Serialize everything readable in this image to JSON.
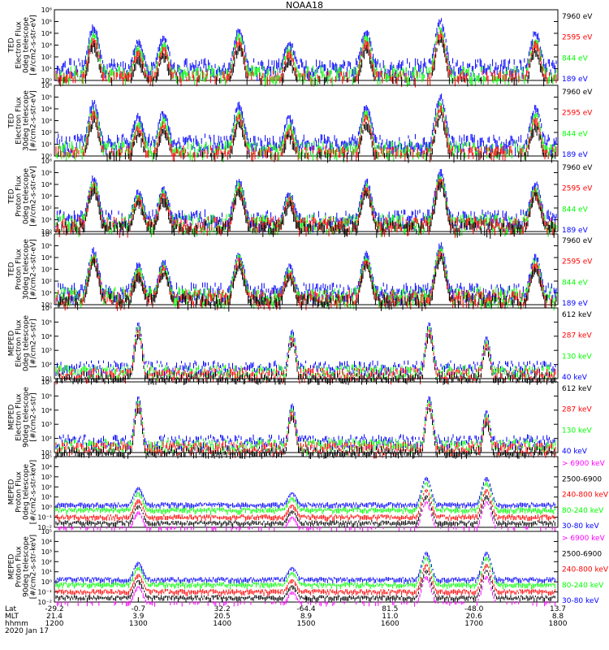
{
  "title": "NOAA18",
  "colors": {
    "blue": "#0000ff",
    "red": "#ff0000",
    "green": "#00ff00",
    "black": "#000000",
    "magenta": "#ff00ff"
  },
  "panels": [
    {
      "ylabel": [
        "TED",
        "Electron Flux",
        "0deg telescope",
        "[#/cm2-s-str-eV]"
      ],
      "ticks": [
        "10⁰",
        "10¹",
        "10²",
        "10³",
        "10⁴",
        "10⁵",
        "10⁶"
      ],
      "log_min": 0,
      "log_max": 6,
      "legend": [
        {
          "text": "7960 eV",
          "color": "black"
        },
        {
          "text": "2595 eV",
          "color": "red"
        },
        {
          "text": "844 eV",
          "color": "green"
        },
        {
          "text": "189 eV",
          "color": "blue"
        }
      ]
    },
    {
      "ylabel": [
        "TED",
        "Electron Flux",
        "30deg telescope",
        "[#/cm2-s-str-eV]"
      ],
      "ticks": [
        "10⁰",
        "10¹",
        "10²",
        "10³",
        "10⁴",
        "10⁵",
        "10⁶"
      ],
      "log_min": 0,
      "log_max": 6,
      "legend": [
        {
          "text": "7960 eV",
          "color": "black"
        },
        {
          "text": "2595 eV",
          "color": "red"
        },
        {
          "text": "844 eV",
          "color": "green"
        },
        {
          "text": "189 eV",
          "color": "blue"
        }
      ]
    },
    {
      "ylabel": [
        "TED",
        "Proton Flux",
        "0deg telescope",
        "[#/cm2-s-str-eV]"
      ],
      "ticks": [
        "10⁰",
        "10¹",
        "10²",
        "10³",
        "10⁴",
        "10⁵",
        "10⁶"
      ],
      "log_min": 0,
      "log_max": 6,
      "legend": [
        {
          "text": "7960 eV",
          "color": "black"
        },
        {
          "text": "2595 eV",
          "color": "red"
        },
        {
          "text": "844 eV",
          "color": "green"
        },
        {
          "text": "189 eV",
          "color": "blue"
        }
      ]
    },
    {
      "ylabel": [
        "TED",
        "Proton Flux",
        "30deg telescope",
        "[#/cm2-s-str-eV]"
      ],
      "ticks": [
        "10⁰",
        "10¹",
        "10²",
        "10³",
        "10⁴",
        "10⁵",
        "10⁶"
      ],
      "log_min": 0,
      "log_max": 6,
      "legend": [
        {
          "text": "7960 eV",
          "color": "black"
        },
        {
          "text": "2595 eV",
          "color": "red"
        },
        {
          "text": "844 eV",
          "color": "green"
        },
        {
          "text": "189 eV",
          "color": "blue"
        }
      ]
    },
    {
      "ylabel": [
        "MEPED",
        "Electron Flux",
        "0deg telescope",
        "[#/cm2-s-str]"
      ],
      "ticks": [
        "10¹",
        "10²",
        "10³",
        "10⁴",
        "10⁵",
        "10⁶"
      ],
      "log_min": 1,
      "log_max": 6,
      "legend": [
        {
          "text": "612 keV",
          "color": "black"
        },
        {
          "text": "287 keV",
          "color": "red"
        },
        {
          "text": "130 keV",
          "color": "green"
        },
        {
          "text": "40 keV",
          "color": "blue"
        }
      ]
    },
    {
      "ylabel": [
        "MEPED",
        "Electron Flux",
        "90deg telescope",
        "[#/cm2-s-str]"
      ],
      "ticks": [
        "10¹",
        "10²",
        "10³",
        "10⁴",
        "10⁵",
        "10⁶"
      ],
      "log_min": 1,
      "log_max": 6,
      "legend": [
        {
          "text": "612 keV",
          "color": "black"
        },
        {
          "text": "287 keV",
          "color": "red"
        },
        {
          "text": "130 keV",
          "color": "green"
        },
        {
          "text": "40 keV",
          "color": "blue"
        }
      ]
    },
    {
      "ylabel": [
        "MEPED",
        "Proton Flux",
        "0deg telescope",
        "[#/cm2-s-str-keV]"
      ],
      "ticks": [
        "10⁻²",
        "10⁻¹",
        "10⁰",
        "10¹",
        "10²",
        "10³",
        "10⁴",
        "10⁵"
      ],
      "log_min": -2,
      "log_max": 5,
      "legend": [
        {
          "text": "> 6900 keV",
          "color": "magenta"
        },
        {
          "text": "2500-6900",
          "color": "black"
        },
        {
          "text": "240-800 keV",
          "color": "red"
        },
        {
          "text": "80-240 keV",
          "color": "green"
        },
        {
          "text": "30-80 keV",
          "color": "blue"
        }
      ]
    },
    {
      "ylabel": [
        "MEPED",
        "Proton Flux",
        "90deg telescope",
        "[#/cm2-s-str-keV]"
      ],
      "ticks": [
        "10⁻²",
        "10⁻¹",
        "10⁰",
        "10¹",
        "10²",
        "10³",
        "10⁴",
        "10⁵"
      ],
      "log_min": -2,
      "log_max": 5,
      "legend": [
        {
          "text": "> 6900 keV",
          "color": "magenta"
        },
        {
          "text": "2500-6900",
          "color": "black"
        },
        {
          "text": "240-800 keV",
          "color": "red"
        },
        {
          "text": "80-240 keV",
          "color": "green"
        },
        {
          "text": "30-80 keV",
          "color": "blue"
        }
      ]
    }
  ],
  "x_axis": {
    "row_labels": [
      "Lat",
      "MLT",
      "hhmm"
    ],
    "date": "2020 Jan 17",
    "columns": [
      {
        "lat": "-29.2",
        "mlt": "21.4",
        "hhmm": "1200"
      },
      {
        "lat": "-0.7",
        "mlt": "3.9",
        "hhmm": "1300"
      },
      {
        "lat": "32.2",
        "mlt": "20.5",
        "hhmm": "1400"
      },
      {
        "lat": "-64.4",
        "mlt": "8.9",
        "hhmm": "1500"
      },
      {
        "lat": "81.5",
        "mlt": "11.0",
        "hhmm": "1600"
      },
      {
        "lat": "-48.0",
        "mlt": "20.6",
        "hhmm": "1700"
      },
      {
        "lat": "13.7",
        "mlt": "8.8",
        "hhmm": "1800"
      }
    ]
  },
  "chart_data": {
    "type": "line",
    "title": "NOAA18",
    "x": [
      "1200",
      "1300",
      "1400",
      "1500",
      "1600",
      "1700",
      "1800"
    ],
    "xlim": [
      "1200",
      "1800"
    ],
    "y_scale": "log",
    "grid": false,
    "legend_placement": "right",
    "profiles": {
      "ted_electron": [
        {
          "t": "1228",
          "base": 1.0,
          "peak": 4.5
        },
        {
          "t": "1300",
          "base": 1.2,
          "peak": 3.3
        },
        {
          "t": "1318",
          "base": 1.2,
          "peak": 3.6
        },
        {
          "t": "1412",
          "base": 1.2,
          "peak": 4.3
        },
        {
          "t": "1448",
          "base": 1.0,
          "peak": 3.2
        },
        {
          "t": "1543",
          "base": 1.2,
          "peak": 4.2
        },
        {
          "t": "1636",
          "base": 1.0,
          "peak": 5.0
        },
        {
          "t": "1744",
          "base": 1.0,
          "peak": 4.0
        }
      ],
      "meped_electron_0deg_40keV": [
        {
          "t": "1300",
          "value": 100000
        },
        {
          "t": "1450",
          "value": 30000
        },
        {
          "t": "1628",
          "value": 100000
        },
        {
          "t": "1709",
          "value": 10000
        }
      ],
      "meped_proton_0deg_30-80keV": [
        {
          "t": "1300",
          "value": 100
        },
        {
          "t": "1450",
          "value": 30
        },
        {
          "t": "1626",
          "value": 1000
        },
        {
          "t": "1709",
          "value": 1000
        }
      ]
    }
  }
}
